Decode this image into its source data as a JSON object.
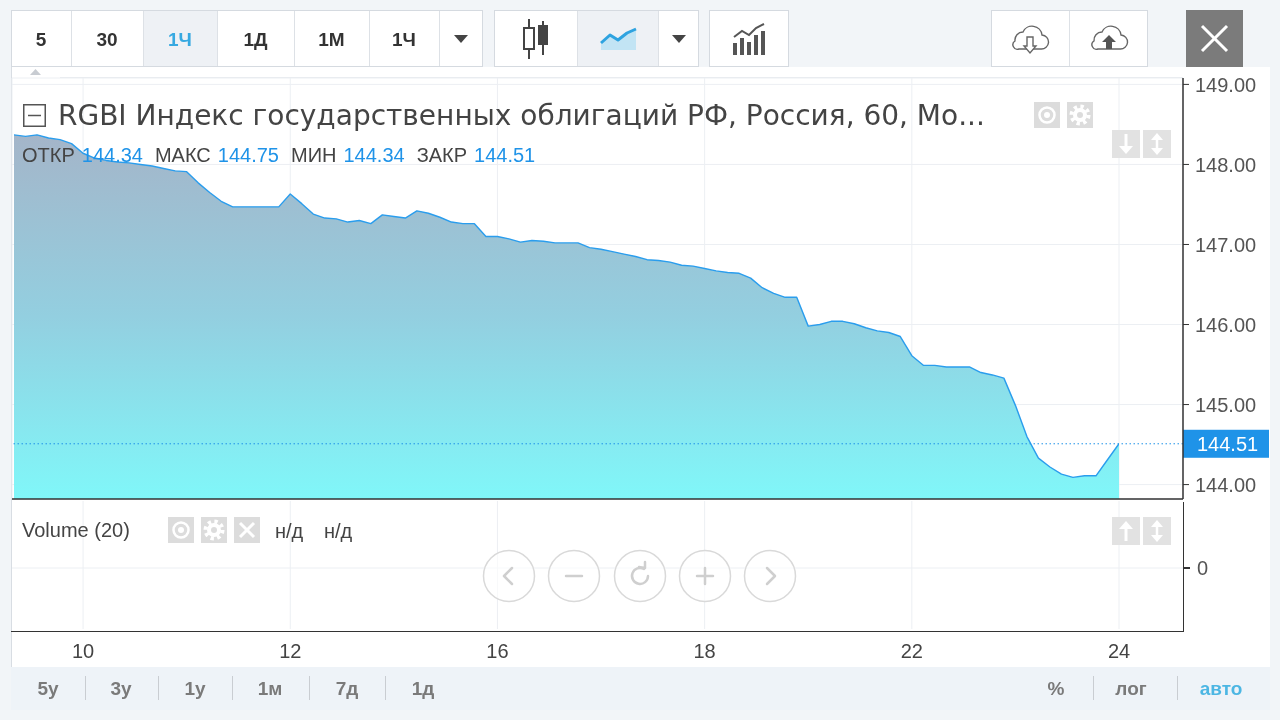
{
  "chart_data": {
    "type": "area",
    "title": "RGBI Индекс государственных облигаций РФ, Россия, 60, Мо...",
    "categories": [
      null,
      null,
      null,
      null,
      null,
      null,
      "10",
      null,
      null,
      null,
      null,
      null,
      null,
      null,
      null,
      null,
      null,
      null,
      null,
      null,
      null,
      null,
      null,
      null,
      "12",
      null,
      null,
      null,
      null,
      null,
      null,
      null,
      null,
      null,
      null,
      null,
      null,
      null,
      null,
      null,
      null,
      null,
      "16",
      null,
      null,
      null,
      null,
      null,
      null,
      null,
      null,
      null,
      null,
      null,
      null,
      null,
      null,
      null,
      null,
      null,
      "18",
      null,
      null,
      null,
      null,
      null,
      null,
      null,
      null,
      null,
      null,
      null,
      null,
      null,
      null,
      null,
      null,
      null,
      "22",
      null,
      null,
      null,
      null,
      null,
      null,
      null,
      null,
      null,
      null,
      null,
      null,
      null,
      null,
      null,
      null,
      null,
      "24"
    ],
    "values": [
      148.37,
      148.35,
      148.37,
      148.33,
      148.31,
      148.26,
      148.14,
      148.08,
      148.05,
      148.03,
      148.02,
      148.0,
      147.98,
      147.95,
      147.92,
      147.91,
      147.77,
      147.65,
      147.54,
      147.47,
      147.47,
      147.47,
      147.47,
      147.47,
      147.63,
      147.51,
      147.38,
      147.33,
      147.32,
      147.28,
      147.3,
      147.26,
      147.37,
      147.35,
      147.33,
      147.42,
      147.39,
      147.34,
      147.28,
      147.26,
      147.26,
      147.1,
      147.1,
      147.07,
      147.03,
      147.05,
      147.04,
      147.02,
      147.02,
      147.02,
      146.96,
      146.94,
      146.91,
      146.88,
      146.85,
      146.81,
      146.8,
      146.78,
      146.74,
      146.73,
      146.7,
      146.67,
      146.65,
      146.64,
      146.58,
      146.46,
      146.39,
      146.34,
      146.34,
      145.98,
      146.0,
      146.04,
      146.04,
      146.01,
      145.96,
      145.92,
      145.9,
      145.85,
      145.61,
      145.49,
      145.49,
      145.47,
      145.47,
      145.47,
      145.4,
      145.37,
      145.33,
      144.99,
      144.6,
      144.33,
      144.22,
      144.13,
      144.09,
      144.11,
      144.11,
      144.31,
      144.51
    ],
    "color": "#2a9ded",
    "ylim": [
      143.82,
      149.08
    ],
    "yticks": [
      {
        "value": 144,
        "label": "144.00"
      },
      {
        "value": 145,
        "label": "145.00"
      },
      {
        "value": 146,
        "label": "146.00"
      },
      {
        "value": 147,
        "label": "147.00"
      },
      {
        "value": 148,
        "label": "148.00"
      },
      {
        "value": 149,
        "label": "149.00"
      }
    ],
    "grid": true,
    "ref_lines": [
      {
        "axis": "y",
        "value": 144.51,
        "label": "144.51",
        "color": "#1f93e8",
        "line_style": "dotted"
      }
    ],
    "annotations": [
      "5",
      "30",
      "1Ч",
      "1Д",
      "1М",
      "1Ч",
      "ОТКР",
      "144.34",
      "МАКС",
      "144.75",
      "МИН",
      "144.34",
      "ЗАКР",
      "144.51",
      "Volume (20)",
      "н/д",
      "н/д",
      "0",
      "5у",
      "3у",
      "1у",
      "1м",
      "7д",
      "1д",
      "%",
      "лог",
      "авто"
    ]
  }
}
